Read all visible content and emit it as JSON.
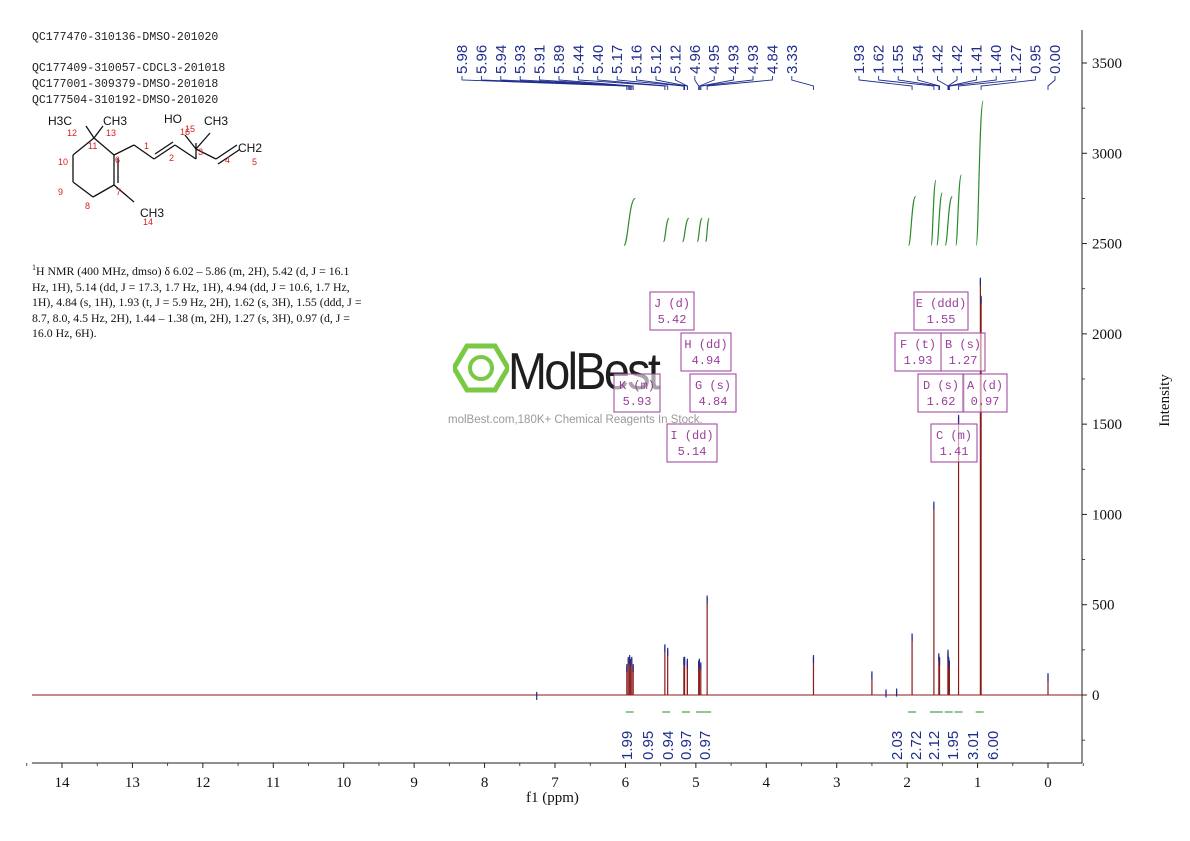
{
  "header": {
    "sample_ids": [
      "QC177470-310136-DMSO-201020",
      "QC177409-310057-CDCL3-201018",
      "QC177001-309379-DMSO-201018",
      "QC177504-310192-DMSO-201020"
    ]
  },
  "structure": {
    "atom_labels": [
      "H3C",
      "CH3",
      "HO",
      "CH3",
      "CH2",
      "CH3"
    ],
    "atom_numbers": [
      "1",
      "2",
      "3",
      "4",
      "5",
      "6",
      "7",
      "8",
      "9",
      "10",
      "11",
      "12",
      "13",
      "14",
      "15",
      "16"
    ]
  },
  "nmr_description": {
    "superscript": "1",
    "text": "H NMR (400 MHz, dmso) δ 6.02 – 5.86 (m, 2H), 5.42 (d, J = 16.1 Hz, 1H), 5.14 (dd, J = 17.3, 1.7 Hz, 1H), 4.94 (dd, J = 10.6, 1.7 Hz, 1H), 4.84 (s, 1H), 1.93 (t, J = 5.9 Hz, 2H), 1.62 (s, 3H), 1.55 (ddd, J = 8.7, 8.0, 4.5 Hz, 2H), 1.44 – 1.38 (m, 2H), 1.27 (s, 3H), 0.97 (d, J = 16.0 Hz, 6H)."
  },
  "watermark": {
    "brand": "MolBest",
    "tagline": "molBest.com,180K+ Chemical Reagents In Stock."
  },
  "colors": {
    "spectrum": "#8b1a1a",
    "peak_labels": "#1f2d8c",
    "integrals": "#2a8a2a",
    "multiplet_boxes": "#9b3c9b",
    "axis": "#222222",
    "logo_green": "#7ac943"
  },
  "chart_data": {
    "type": "line",
    "title": "",
    "xlabel": "f1 (ppm)",
    "ylabel": "Intensity",
    "x_reversed": true,
    "xlim": [
      14.5,
      -0.5
    ],
    "ylim": [
      -300,
      3650
    ],
    "x_ticks": [
      14,
      13,
      12,
      11,
      10,
      9,
      8,
      7,
      6,
      5,
      4,
      3,
      2,
      1,
      0
    ],
    "y_ticks": [
      0,
      500,
      1000,
      1500,
      2000,
      2500,
      3000,
      3500
    ],
    "grid": false,
    "peaks": [
      {
        "ppm": 7.26,
        "height": 6
      },
      {
        "ppm": 5.98,
        "height": 160
      },
      {
        "ppm": 5.96,
        "height": 200
      },
      {
        "ppm": 5.94,
        "height": 210
      },
      {
        "ppm": 5.93,
        "height": 190
      },
      {
        "ppm": 5.91,
        "height": 200
      },
      {
        "ppm": 5.89,
        "height": 160
      },
      {
        "ppm": 5.44,
        "height": 270
      },
      {
        "ppm": 5.4,
        "height": 250
      },
      {
        "ppm": 5.17,
        "height": 200
      },
      {
        "ppm": 5.16,
        "height": 200
      },
      {
        "ppm": 5.12,
        "height": 190
      },
      {
        "ppm": 5.12,
        "height": 180
      },
      {
        "ppm": 4.96,
        "height": 180
      },
      {
        "ppm": 4.95,
        "height": 190
      },
      {
        "ppm": 4.93,
        "height": 170
      },
      {
        "ppm": 4.84,
        "height": 540
      },
      {
        "ppm": 3.33,
        "height": 210
      },
      {
        "ppm": 2.5,
        "height": 120
      },
      {
        "ppm": 2.3,
        "height": 20
      },
      {
        "ppm": 2.15,
        "height": 25
      },
      {
        "ppm": 1.93,
        "height": 330
      },
      {
        "ppm": 1.62,
        "height": 1060
      },
      {
        "ppm": 1.55,
        "height": 220
      },
      {
        "ppm": 1.54,
        "height": 200
      },
      {
        "ppm": 1.42,
        "height": 240
      },
      {
        "ppm": 1.42,
        "height": 220
      },
      {
        "ppm": 1.41,
        "height": 200
      },
      {
        "ppm": 1.4,
        "height": 180
      },
      {
        "ppm": 1.27,
        "height": 1540
      },
      {
        "ppm": 0.96,
        "height": 2300
      },
      {
        "ppm": 0.95,
        "height": 2200
      },
      {
        "ppm": 0.0,
        "height": 110
      }
    ],
    "peak_labels_left": [
      "5.98",
      "5.96",
      "5.94",
      "5.93",
      "5.91",
      "5.89",
      "5.44",
      "5.40",
      "5.17",
      "5.16",
      "5.12",
      "5.12",
      "4.96",
      "4.95",
      "4.93",
      "4.93",
      "4.84",
      "3.33"
    ],
    "peak_labels_right": [
      "1.93",
      "1.62",
      "1.55",
      "1.54",
      "1.42",
      "1.42",
      "1.41",
      "1.40",
      "1.27",
      "0.95",
      "0.00"
    ],
    "integral_curves": [
      {
        "from": 6.02,
        "to": 5.86,
        "y_start": 2490,
        "y_end": 2750
      },
      {
        "from": 5.46,
        "to": 5.38,
        "y_start": 2510,
        "y_end": 2640
      },
      {
        "from": 5.19,
        "to": 5.1,
        "y_start": 2510,
        "y_end": 2640
      },
      {
        "from": 4.98,
        "to": 4.91,
        "y_start": 2510,
        "y_end": 2640
      },
      {
        "from": 4.86,
        "to": 4.81,
        "y_start": 2510,
        "y_end": 2640
      },
      {
        "from": 1.98,
        "to": 1.88,
        "y_start": 2490,
        "y_end": 2760
      },
      {
        "from": 1.66,
        "to": 1.59,
        "y_start": 2490,
        "y_end": 2850
      },
      {
        "from": 1.58,
        "to": 1.5,
        "y_start": 2490,
        "y_end": 2780
      },
      {
        "from": 1.46,
        "to": 1.36,
        "y_start": 2490,
        "y_end": 2760
      },
      {
        "from": 1.31,
        "to": 1.23,
        "y_start": 2490,
        "y_end": 2880
      },
      {
        "from": 1.02,
        "to": 0.92,
        "y_start": 2490,
        "y_end": 3290
      }
    ],
    "integral_values": [
      {
        "ppm": 5.94,
        "value": "1.99"
      },
      {
        "ppm": 5.42,
        "value": "0.95"
      },
      {
        "ppm": 5.14,
        "value": "0.94"
      },
      {
        "ppm": 4.94,
        "value": "0.97"
      },
      {
        "ppm": 4.84,
        "value": "0.97"
      },
      {
        "ppm": 1.93,
        "value": "2.03"
      },
      {
        "ppm": 1.62,
        "value": "2.72"
      },
      {
        "ppm": 1.55,
        "value": "2.12"
      },
      {
        "ppm": 1.41,
        "value": "1.95"
      },
      {
        "ppm": 1.27,
        "value": "3.01"
      },
      {
        "ppm": 0.97,
        "value": "6.00"
      }
    ],
    "multiplets": [
      {
        "name": "J (d)",
        "shift": "5.42",
        "ppm": 5.42
      },
      {
        "name": "H (dd)",
        "shift": "4.94",
        "ppm": 4.94
      },
      {
        "name": "G (s)",
        "shift": "4.84",
        "ppm": 4.84
      },
      {
        "name": "K (m)",
        "shift": "5.93",
        "ppm": 5.93
      },
      {
        "name": "I (dd)",
        "shift": "5.14",
        "ppm": 5.14
      },
      {
        "name": "E (ddd)",
        "shift": "1.55",
        "ppm": 1.55
      },
      {
        "name": "F (t)",
        "shift": "1.93",
        "ppm": 1.93
      },
      {
        "name": "B (s)",
        "shift": "1.27",
        "ppm": 1.27
      },
      {
        "name": "D (s)",
        "shift": "1.62",
        "ppm": 1.62
      },
      {
        "name": "A (d)",
        "shift": "0.97",
        "ppm": 0.97
      },
      {
        "name": "C (m)",
        "shift": "1.41",
        "ppm": 1.41
      }
    ]
  }
}
